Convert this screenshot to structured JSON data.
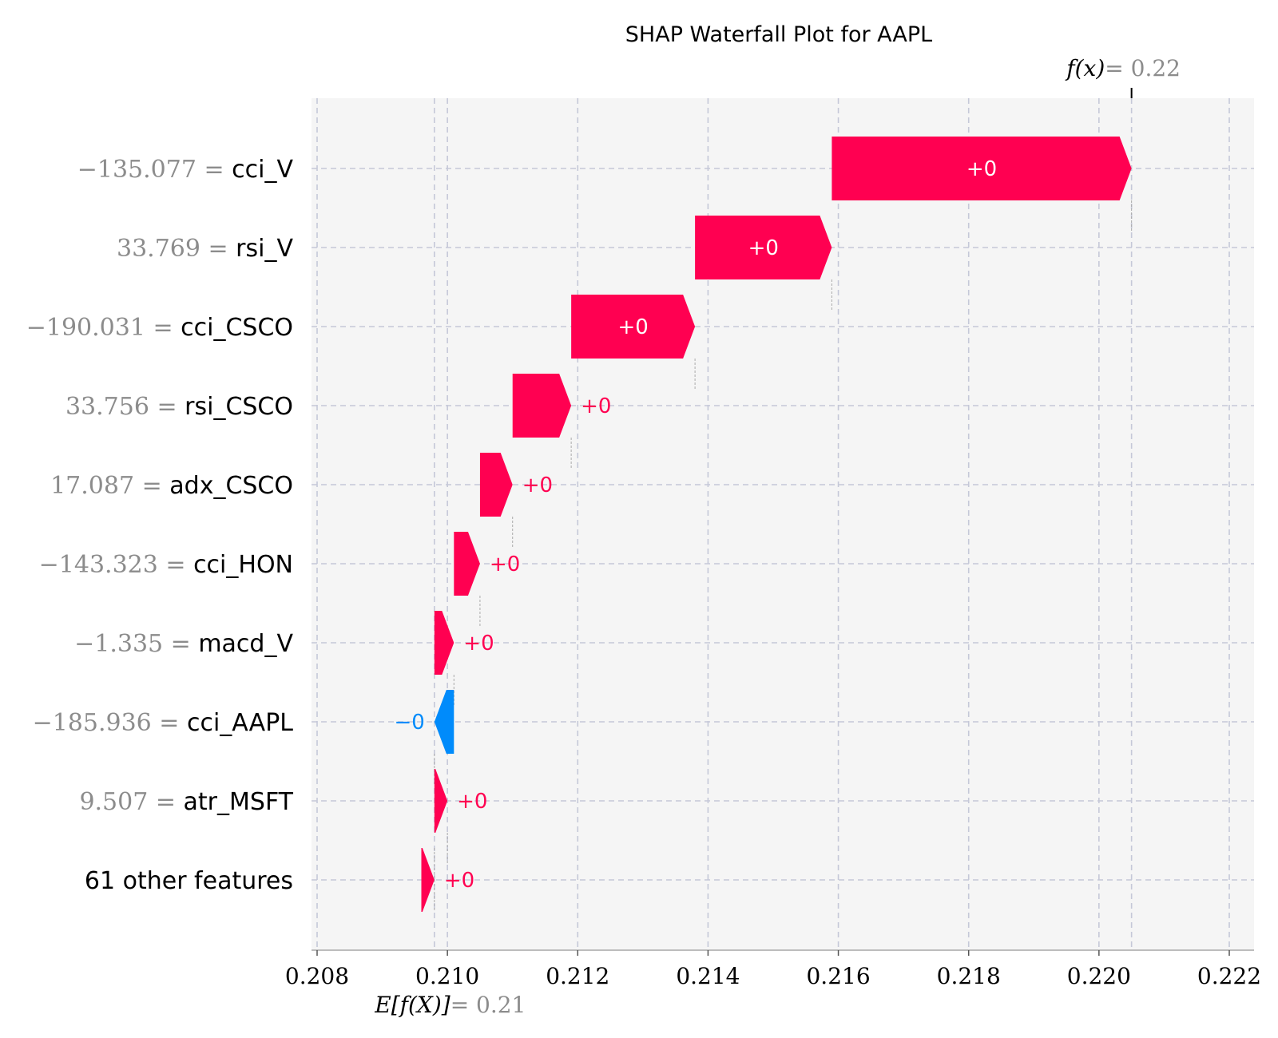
{
  "chart_data": {
    "type": "bar",
    "subtype": "waterfall",
    "title": "SHAP Waterfall Plot for AAPL",
    "xlim": [
      0.208,
      0.222
    ],
    "x_ticks": [
      "0.208",
      "0.210",
      "0.212",
      "0.214",
      "0.216",
      "0.218",
      "0.220",
      "0.222"
    ],
    "x_tick_values": [
      0.208,
      0.21,
      0.212,
      0.214,
      0.216,
      0.218,
      0.22,
      0.222
    ],
    "grid": true,
    "base_value": 0.2098,
    "base_label": "E[f(X)]",
    "base_display": "= 0.21",
    "final_value": 0.2205,
    "final_label": "f(x)",
    "final_display": "= 0.22",
    "features": [
      {
        "value_text": "−135.077 =",
        "name": "cci_V",
        "start": 0.2159,
        "end": 0.2205,
        "label": "+0"
      },
      {
        "value_text": "33.769 =",
        "name": "rsi_V",
        "start": 0.2138,
        "end": 0.2159,
        "label": "+0"
      },
      {
        "value_text": "−190.031 =",
        "name": "cci_CSCO",
        "start": 0.2119,
        "end": 0.2138,
        "label": "+0"
      },
      {
        "value_text": "33.756 =",
        "name": "rsi_CSCO",
        "start": 0.211,
        "end": 0.2119,
        "label": "+0"
      },
      {
        "value_text": "17.087 =",
        "name": "adx_CSCO",
        "start": 0.2105,
        "end": 0.211,
        "label": "+0"
      },
      {
        "value_text": "−143.323 =",
        "name": "cci_HON",
        "start": 0.2101,
        "end": 0.2105,
        "label": "+0"
      },
      {
        "value_text": "−1.335 =",
        "name": "macd_V",
        "start": 0.2098,
        "end": 0.2101,
        "label": "+0"
      },
      {
        "value_text": "−185.936 =",
        "name": "cci_AAPL",
        "start": 0.2101,
        "end": 0.2098,
        "label": "−0"
      },
      {
        "value_text": "9.507 =",
        "name": "atr_MSFT",
        "start": 0.2098,
        "end": 0.21,
        "label": "+0"
      },
      {
        "value_text": "",
        "name": "61 other features",
        "start": 0.2096,
        "end": 0.2098,
        "label": "+0"
      }
    ],
    "colors": {
      "positive": "#ff0051",
      "negative": "#008bfb",
      "background": "#f5f5f5",
      "grid": "#c5c8d8"
    }
  }
}
